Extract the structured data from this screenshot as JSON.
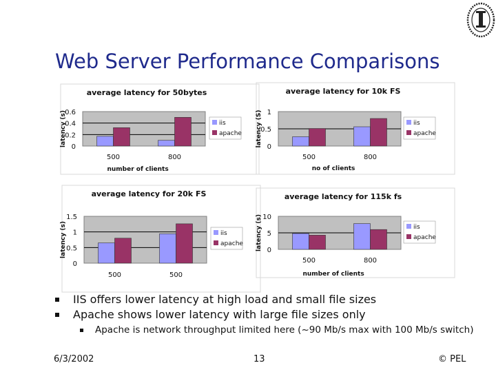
{
  "slide": {
    "title": "Web Server Performance Comparisons",
    "bullets": [
      "IIS offers lower latency at high load and small file sizes",
      "Apache shows lower latency with large file sizes only"
    ],
    "sub_bullet": "Apache is network throughput limited here (~90 Mb/s max with 100 Mb/s switch)",
    "footer": {
      "date": "6/3/2002",
      "page": "13",
      "copyright": "© PEL"
    }
  },
  "colors": {
    "title": "#1f2a8c",
    "iis": "#9999ff",
    "apache": "#993366",
    "plot_bg": "#c0c0c0"
  },
  "chart_data": [
    {
      "type": "bar",
      "title": "average latency for 50bytes",
      "xlabel": "number of clients",
      "ylabel": "latency (s)",
      "categories": [
        "500",
        "800"
      ],
      "series": [
        {
          "name": "iis",
          "values": [
            0.17,
            0.1
          ]
        },
        {
          "name": "apache",
          "values": [
            0.32,
            0.5
          ]
        }
      ],
      "ylim": [
        0,
        0.6
      ],
      "yticks": [
        "0",
        "0.2",
        "0.4",
        "0.6"
      ],
      "legend": "right",
      "grid": true
    },
    {
      "type": "bar",
      "title": "average latency for 10k FS",
      "xlabel": "no of clients",
      "ylabel": "latency (S)",
      "categories": [
        "500",
        "800"
      ],
      "series": [
        {
          "name": "iis",
          "values": [
            0.27,
            0.56
          ]
        },
        {
          "name": "apache",
          "values": [
            0.51,
            0.8
          ]
        }
      ],
      "ylim": [
        0,
        1
      ],
      "yticks": [
        "0",
        "0.5",
        "1"
      ],
      "legend": "right",
      "grid": true
    },
    {
      "type": "bar",
      "title": "average latency for 20k FS",
      "xlabel": "",
      "ylabel": "latency (s)",
      "categories": [
        "500",
        "500"
      ],
      "series": [
        {
          "name": "iis",
          "values": [
            0.65,
            0.94
          ]
        },
        {
          "name": "apache",
          "values": [
            0.8,
            1.26
          ]
        }
      ],
      "ylim": [
        0,
        1.5
      ],
      "yticks": [
        "0",
        "0.5",
        "1",
        "1.5"
      ],
      "legend": "right",
      "grid": true
    },
    {
      "type": "bar",
      "title": "average latency for 115k fs",
      "xlabel": "number of clients",
      "ylabel": "latency (s)",
      "categories": [
        "500",
        "800"
      ],
      "series": [
        {
          "name": "iis",
          "values": [
            4.8,
            7.8
          ]
        },
        {
          "name": "apache",
          "values": [
            4.3,
            6.0
          ]
        }
      ],
      "ylim": [
        0,
        10
      ],
      "yticks": [
        "0",
        "5",
        "10"
      ],
      "legend": "right",
      "grid": true
    }
  ]
}
